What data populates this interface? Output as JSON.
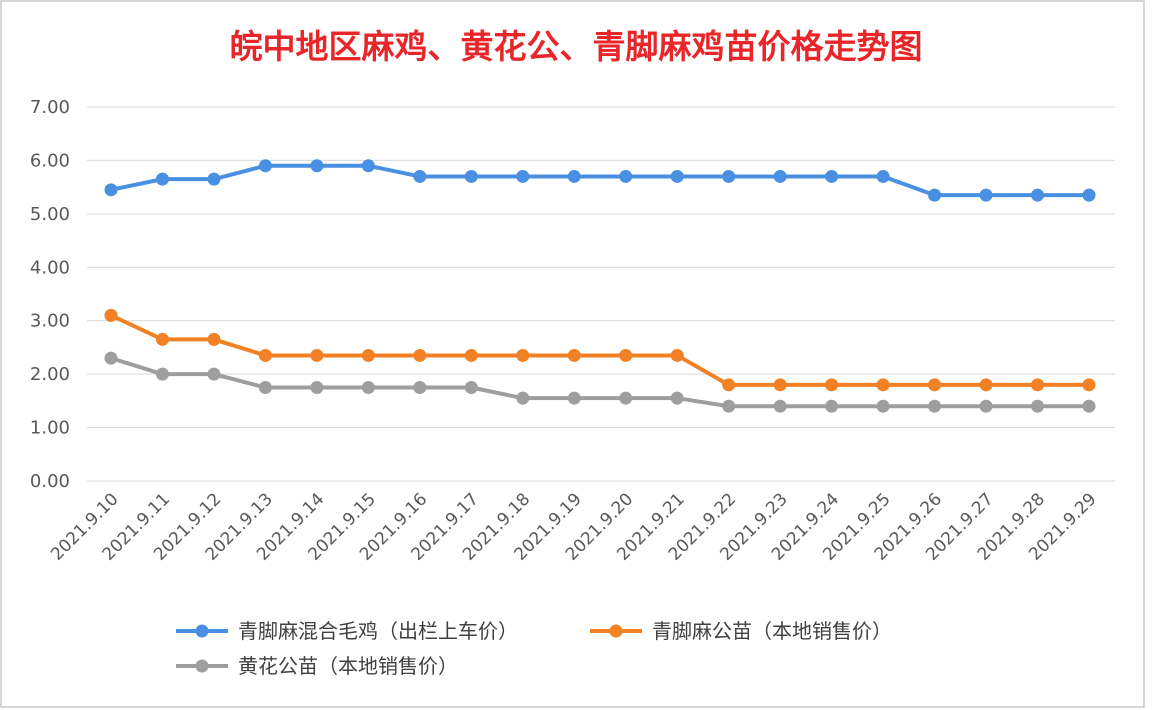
{
  "chart_data": {
    "type": "line",
    "title": "皖中地区麻鸡、黄花公、青脚麻鸡苗价格走势图",
    "xlabel": "",
    "ylabel": "",
    "ylim": [
      0,
      7
    ],
    "yticks": [
      "0.00",
      "1.00",
      "2.00",
      "3.00",
      "4.00",
      "5.00",
      "6.00",
      "7.00"
    ],
    "grid": true,
    "legend_position": "bottom",
    "categories": [
      "2021.9.10",
      "2021.9.11",
      "2021.9.12",
      "2021.9.13",
      "2021.9.14",
      "2021.9.15",
      "2021.9.16",
      "2021.9.17",
      "2021.9.18",
      "2021.9.19",
      "2021.9.20",
      "2021.9.21",
      "2021.9.22",
      "2021.9.23",
      "2021.9.24",
      "2021.9.25",
      "2021.9.26",
      "2021.9.27",
      "2021.9.28",
      "2021.9.29"
    ],
    "series": [
      {
        "name": "青脚麻混合毛鸡（出栏上车价）",
        "color": "#4a90e2",
        "values": [
          5.45,
          5.65,
          5.65,
          5.9,
          5.9,
          5.9,
          5.7,
          5.7,
          5.7,
          5.7,
          5.7,
          5.7,
          5.7,
          5.7,
          5.7,
          5.7,
          5.35,
          5.35,
          5.35,
          5.35
        ]
      },
      {
        "name": "青脚麻公苗（本地销售价）",
        "color": "#f28025",
        "values": [
          3.1,
          2.65,
          2.65,
          2.35,
          2.35,
          2.35,
          2.35,
          2.35,
          2.35,
          2.35,
          2.35,
          2.35,
          1.8,
          1.8,
          1.8,
          1.8,
          1.8,
          1.8,
          1.8,
          1.8
        ]
      },
      {
        "name": "黄花公苗（本地销售价）",
        "color": "#9e9e9e",
        "values": [
          2.3,
          2.0,
          2.0,
          1.75,
          1.75,
          1.75,
          1.75,
          1.75,
          1.55,
          1.55,
          1.55,
          1.55,
          1.4,
          1.4,
          1.4,
          1.4,
          1.4,
          1.4,
          1.4,
          1.4
        ]
      }
    ]
  },
  "colors": {
    "title": "#e8262a",
    "grid": "#d9d9d9",
    "frame": "#c8c8c8"
  }
}
